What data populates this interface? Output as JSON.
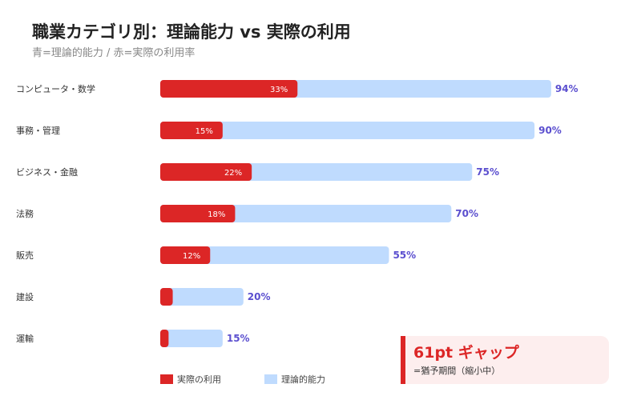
{
  "title": "職業カテゴリ別：理論能力 vs 実際の利用",
  "subtitle": "青=理論的能力 / 赤=実際の利用率",
  "chart_data": {
    "type": "bar",
    "orientation": "horizontal",
    "categories": [
      "コンピュータ・数学",
      "事務・管理",
      "ビジネス・金融",
      "法務",
      "販売",
      "建設",
      "運輸"
    ],
    "series": [
      {
        "name": "理論的能力",
        "color": "#bfdbfe",
        "values": [
          94,
          90,
          75,
          70,
          55,
          20,
          15
        ]
      },
      {
        "name": "実際の利用",
        "color": "#dc2626",
        "values": [
          33,
          15,
          22,
          18,
          12,
          3,
          2
        ]
      }
    ],
    "value_labels": [
      "94%",
      "90%",
      "75%",
      "70%",
      "55%",
      "20%",
      "15%"
    ],
    "usage_labels": [
      "33%",
      "15%",
      "22%",
      "18%",
      "12%",
      "",
      ""
    ],
    "xlim": [
      0,
      100
    ],
    "grid": false,
    "legend_position": "bottom"
  },
  "legend": {
    "actual": "実際の利用",
    "theoretical": "理論的能力"
  },
  "callout": {
    "headline": "61pt ギャップ",
    "note": "=猶予期間（縮小中）",
    "color": "#dc2626"
  }
}
